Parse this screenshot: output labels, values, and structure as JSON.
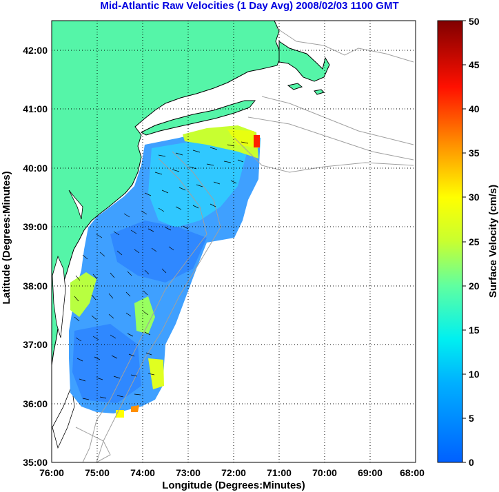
{
  "title": "Mid-Atlantic Raw Velocities (1 Day Avg) 2008/02/03 1100 GMT",
  "chart_data": {
    "type": "heatmap",
    "xlabel": "Longitude (Degrees:Minutes)",
    "ylabel": "Latitude (Degrees:Minutes)",
    "colorbar_label": "Surface Velocity (cm/s)",
    "x_ticks": [
      "76:00",
      "75:00",
      "74:00",
      "73:00",
      "72:00",
      "71:00",
      "70:00",
      "69:00",
      "68:00"
    ],
    "y_ticks": [
      "35:00",
      "36:00",
      "37:00",
      "38:00",
      "39:00",
      "40:00",
      "41:00",
      "42:00"
    ],
    "xlim": [
      -76,
      -68
    ],
    "ylim": [
      35,
      42.5
    ],
    "colorbar_ticks": [
      "0",
      "5",
      "10",
      "15",
      "20",
      "25",
      "30",
      "35",
      "40",
      "45",
      "50"
    ],
    "colorbar_range": [
      0,
      50
    ],
    "grid": true,
    "colors": {
      "land": "#55f5a8",
      "coastline": "#000000",
      "bathymetry": "#a0a0a0",
      "grid": "#000000",
      "arrows": "#000000"
    }
  }
}
